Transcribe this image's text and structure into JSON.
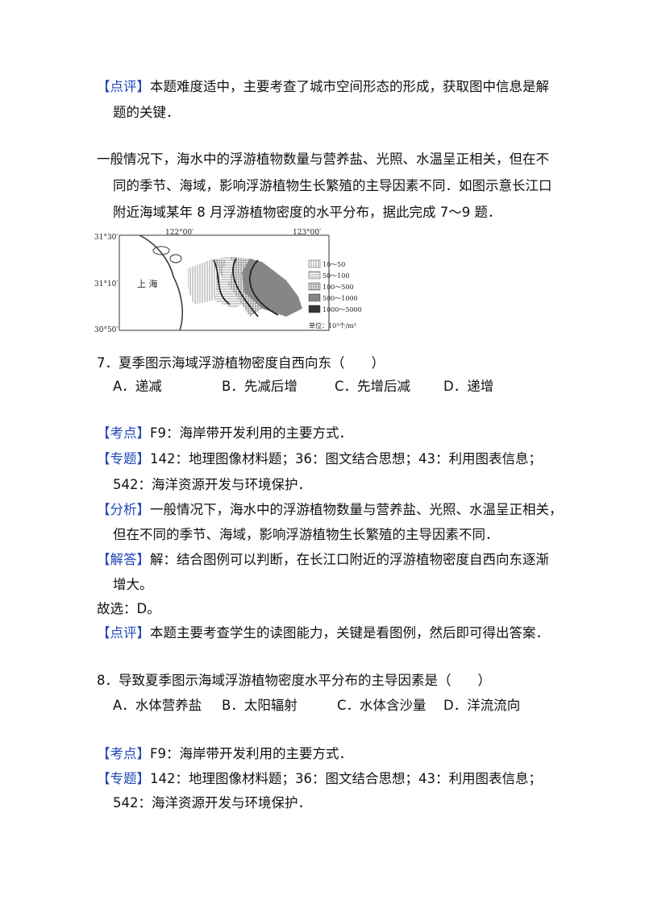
{
  "review1": {
    "tag": "【点评】",
    "lines": [
      "本题难度适中，主要考查了城市空间形态的形成，获取图中信息是解",
      "题的关键．"
    ]
  },
  "intro": {
    "lines": [
      "一般情况下，海水中的浮游植物数量与营养盐、光照、水温呈正相关，但在不",
      "同的季节、海域，影响浮游植物生长繁殖的主导因素不同．如图示意长江口",
      "附近海域某年 8 月浮游植物密度的水平分布，据此完成 7～9 题．"
    ]
  },
  "map": {
    "lat_labels": [
      "31°30′",
      "31°10′",
      "30°50′"
    ],
    "lon_labels": [
      "122°00′",
      "123°00′"
    ],
    "place": "上 海",
    "legend": [
      "10～50",
      "50～100",
      "100～500",
      "500～1000",
      "1000～5000"
    ],
    "unit": "单位：10³个/m³"
  },
  "q7": {
    "stem": "7．夏季图示海域浮游植物密度自西向东（　　）",
    "options": [
      "A．递减",
      "B．先减后增",
      "C．先增后减",
      "D．递增"
    ],
    "analysis": [
      {
        "tag": "【考点】",
        "lines": [
          "F9：海岸带开发利用的主要方式．"
        ]
      },
      {
        "tag": "【专题】",
        "lines": [
          "142：地理图像材料题；36：图文结合思想；43：利用图表信息；",
          "542：海洋资源开发与环境保护．"
        ]
      },
      {
        "tag": "【分析】",
        "lines": [
          "一般情况下，海水中的浮游植物数量与营养盐、光照、水温呈正相关，",
          "但在不同的季节、海域，影响浮游植物生长繁殖的主导因素不同．"
        ]
      },
      {
        "tag": "【解答】",
        "lines": [
          "解：结合图例可以判断，在长江口附近的浮游植物密度自西向东逐渐",
          "增大。"
        ]
      }
    ],
    "answer": "故选：D。",
    "review": {
      "tag": "【点评】",
      "lines": [
        "本题主要考查学生的读图能力，关键是看图例，然后即可得出答案．"
      ]
    }
  },
  "q8": {
    "stem": "8．导致夏季图示海域浮游植物密度水平分布的主导因素是（　　）",
    "options": [
      "A．水体营养盐",
      "B．太阳辐射",
      "C．水体含沙量",
      "D．洋流流向"
    ],
    "analysis": [
      {
        "tag": "【考点】",
        "lines": [
          "F9：海岸带开发利用的主要方式．"
        ]
      },
      {
        "tag": "【专题】",
        "lines": [
          "142：地理图像材料题；36：图文结合思想；43：利用图表信息；",
          "542：海洋资源开发与环境保护．"
        ]
      }
    ]
  }
}
